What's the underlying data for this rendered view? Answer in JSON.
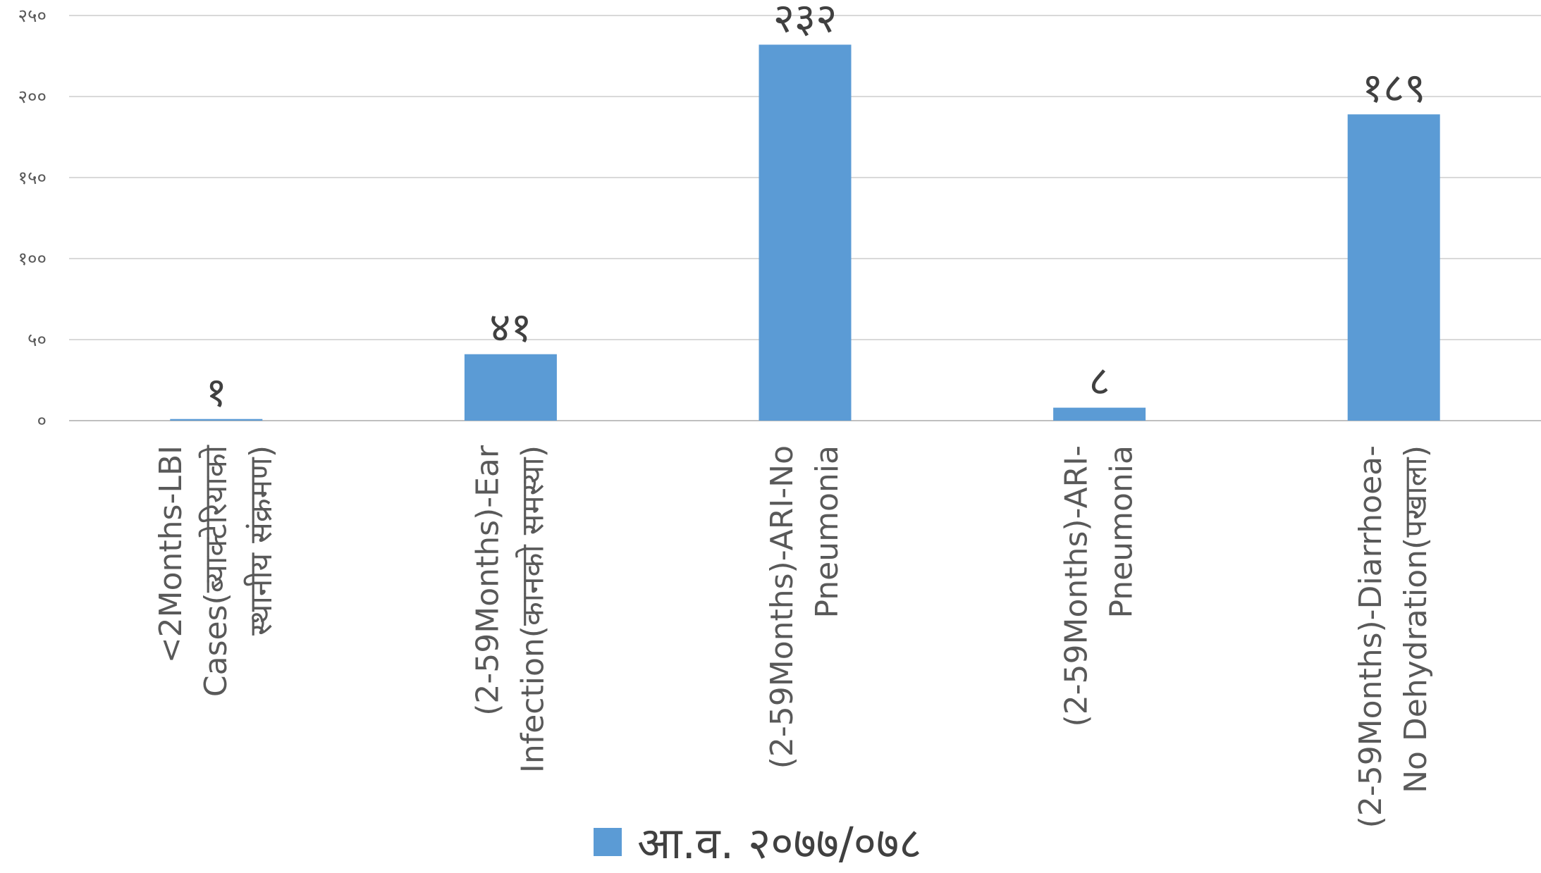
{
  "chart_data": {
    "type": "bar",
    "categories": [
      [
        "<2Months-LBI",
        "Cases(ब्याक्टेरियाको",
        "स्थानीय संक्रमण)"
      ],
      [
        "(2-59Months)-Ear",
        "Infection(कानको समस्या)"
      ],
      [
        "(2-59Months)-ARI-No",
        "Pneumonia"
      ],
      [
        "(2-59Months)-ARI-",
        "Pneumonia"
      ],
      [
        "(2-59Months)-Diarrhoea-",
        "No Dehydration(पखाला)"
      ]
    ],
    "series": [
      {
        "name": "आ.व. २०७७/०७८",
        "values": [
          1,
          41,
          232,
          8,
          189
        ],
        "labels": [
          "१",
          "४१",
          "२३२",
          "८",
          "१८९"
        ],
        "color": "#5b9bd5"
      }
    ],
    "yticks": [
      0,
      50,
      100,
      150,
      200,
      250
    ],
    "ytick_labels": [
      "०",
      "५०",
      "१००",
      "१५०",
      "२००",
      "२५०"
    ],
    "ylim": [
      0,
      250
    ],
    "grid": true,
    "legend_position": "bottom",
    "title": "",
    "xlabel": "",
    "ylabel": ""
  }
}
